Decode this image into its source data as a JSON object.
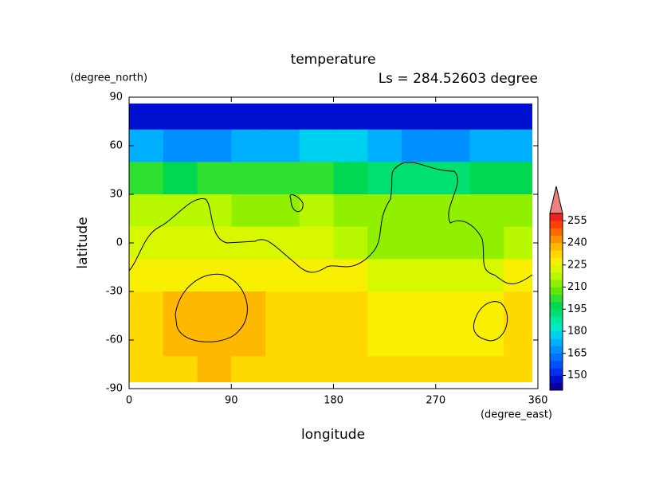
{
  "chart_data": {
    "type": "heatmap",
    "title": "temperature",
    "subtitle": "Ls = 284.52603 degree",
    "x_label": "longitude",
    "x_unit": "(degree_east)",
    "y_label": "latitude",
    "y_unit": "(degree_north)",
    "x": [
      15,
      45,
      75,
      105,
      135,
      165,
      195,
      225,
      255,
      285,
      315,
      345
    ],
    "y": [
      80,
      60,
      40,
      20,
      0,
      -20,
      -40,
      -60,
      -80
    ],
    "values": [
      [
        147,
        147,
        147,
        147,
        147,
        147,
        147,
        147,
        147,
        147,
        147,
        147
      ],
      [
        170,
        168,
        168,
        170,
        172,
        175,
        176,
        172,
        168,
        168,
        170,
        170
      ],
      [
        200,
        198,
        200,
        202,
        200,
        200,
        198,
        192,
        190,
        192,
        196,
        198
      ],
      [
        218,
        216,
        215,
        214,
        214,
        215,
        214,
        212,
        210,
        210,
        212,
        214
      ],
      [
        222,
        223,
        224,
        222,
        222,
        220,
        216,
        212,
        212,
        212,
        214,
        215
      ],
      [
        227,
        227,
        226,
        226,
        226,
        226,
        225,
        222,
        222,
        222,
        224,
        226
      ],
      [
        232,
        236,
        238,
        236,
        232,
        231,
        230,
        228,
        227,
        226,
        228,
        231
      ],
      [
        232,
        238,
        238,
        236,
        232,
        231,
        230,
        226,
        225,
        225,
        228,
        231
      ],
      [
        231,
        234,
        236,
        233,
        231,
        231,
        231,
        230,
        230,
        230,
        231,
        231
      ]
    ],
    "xlim": [
      0,
      360
    ],
    "xticks": [
      0,
      90,
      180,
      270,
      360
    ],
    "ylim": [
      -90,
      90
    ],
    "yticks": [
      -90,
      -60,
      -30,
      0,
      30,
      60,
      90
    ],
    "colorbar": {
      "levels": [
        140,
        145,
        150,
        155,
        160,
        165,
        170,
        175,
        180,
        185,
        190,
        195,
        200,
        205,
        210,
        215,
        220,
        225,
        230,
        235,
        240,
        245,
        250,
        255,
        260
      ],
      "colors": [
        "#0a00a0",
        "#0010d0",
        "#0030f0",
        "#0050ff",
        "#0070ff",
        "#0090ff",
        "#00b0ff",
        "#00d0f0",
        "#00e8c8",
        "#00e8a0",
        "#00e070",
        "#00d850",
        "#30e030",
        "#60e800",
        "#90f000",
        "#b8f800",
        "#d8f800",
        "#f8f000",
        "#ffd800",
        "#ffb800",
        "#ff9000",
        "#ff6800",
        "#ff4000",
        "#f02020"
      ],
      "over_color": "#f08080",
      "ticks": [
        150,
        165,
        180,
        195,
        210,
        225,
        240,
        255
      ]
    }
  }
}
